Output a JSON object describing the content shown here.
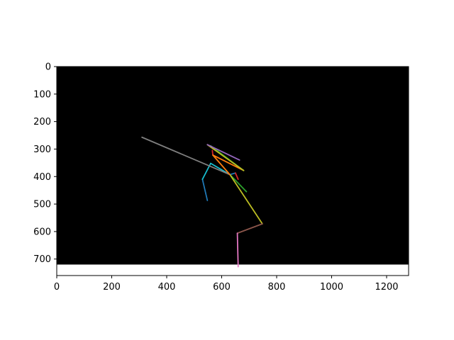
{
  "chart_data": {
    "type": "line",
    "title": "",
    "xlabel": "",
    "ylabel": "",
    "xlim": [
      0,
      1280
    ],
    "ylim": [
      760,
      0
    ],
    "image_extent": {
      "width": 1280,
      "height": 720,
      "background": "#000000"
    },
    "grid": false,
    "x_ticks": [
      0,
      200,
      400,
      600,
      800,
      1000,
      1200
    ],
    "y_ticks": [
      0,
      100,
      200,
      300,
      400,
      500,
      600,
      700
    ],
    "x_tick_labels": [
      "0",
      "200",
      "400",
      "600",
      "800",
      "1000",
      "1200"
    ],
    "y_tick_labels": [
      "0",
      "100",
      "200",
      "300",
      "400",
      "500",
      "600",
      "700"
    ],
    "segments": [
      {
        "color": "#1f77b4",
        "points": [
          [
            548,
            487
          ],
          [
            530,
            410
          ]
        ]
      },
      {
        "color": "#17becf",
        "points": [
          [
            530,
            410
          ],
          [
            560,
            352
          ]
        ]
      },
      {
        "color": "#17becf",
        "points": [
          [
            560,
            352
          ],
          [
            630,
            393
          ]
        ]
      },
      {
        "color": "#7f7f7f",
        "points": [
          [
            310,
            257
          ],
          [
            630,
            393
          ]
        ]
      },
      {
        "color": "#1f77b4",
        "points": [
          [
            630,
            393
          ],
          [
            650,
            387
          ]
        ]
      },
      {
        "color": "#d62728",
        "points": [
          [
            650,
            387
          ],
          [
            660,
            410
          ]
        ]
      },
      {
        "color": "#2ca02c",
        "points": [
          [
            630,
            393
          ],
          [
            690,
            455
          ]
        ]
      },
      {
        "color": "#bcbd22",
        "points": [
          [
            630,
            393
          ],
          [
            748,
            572
          ]
        ]
      },
      {
        "color": "#8c564b",
        "points": [
          [
            748,
            572
          ],
          [
            657,
            606
          ]
        ]
      },
      {
        "color": "#e377c2",
        "points": [
          [
            657,
            606
          ],
          [
            660,
            728
          ]
        ]
      },
      {
        "color": "#ff7f0e",
        "points": [
          [
            630,
            393
          ],
          [
            568,
            322
          ]
        ]
      },
      {
        "color": "#d62728",
        "points": [
          [
            568,
            322
          ],
          [
            566,
            305
          ]
        ]
      },
      {
        "color": "#ff7f0e",
        "points": [
          [
            568,
            322
          ],
          [
            680,
            378
          ]
        ]
      },
      {
        "color": "#2ca02c",
        "points": [
          [
            560,
            288
          ],
          [
            680,
            378
          ]
        ]
      },
      {
        "color": "#bcbd22",
        "points": [
          [
            548,
            284
          ],
          [
            680,
            378
          ]
        ]
      },
      {
        "color": "#9467bd",
        "points": [
          [
            548,
            284
          ],
          [
            665,
            340
          ]
        ]
      }
    ]
  }
}
